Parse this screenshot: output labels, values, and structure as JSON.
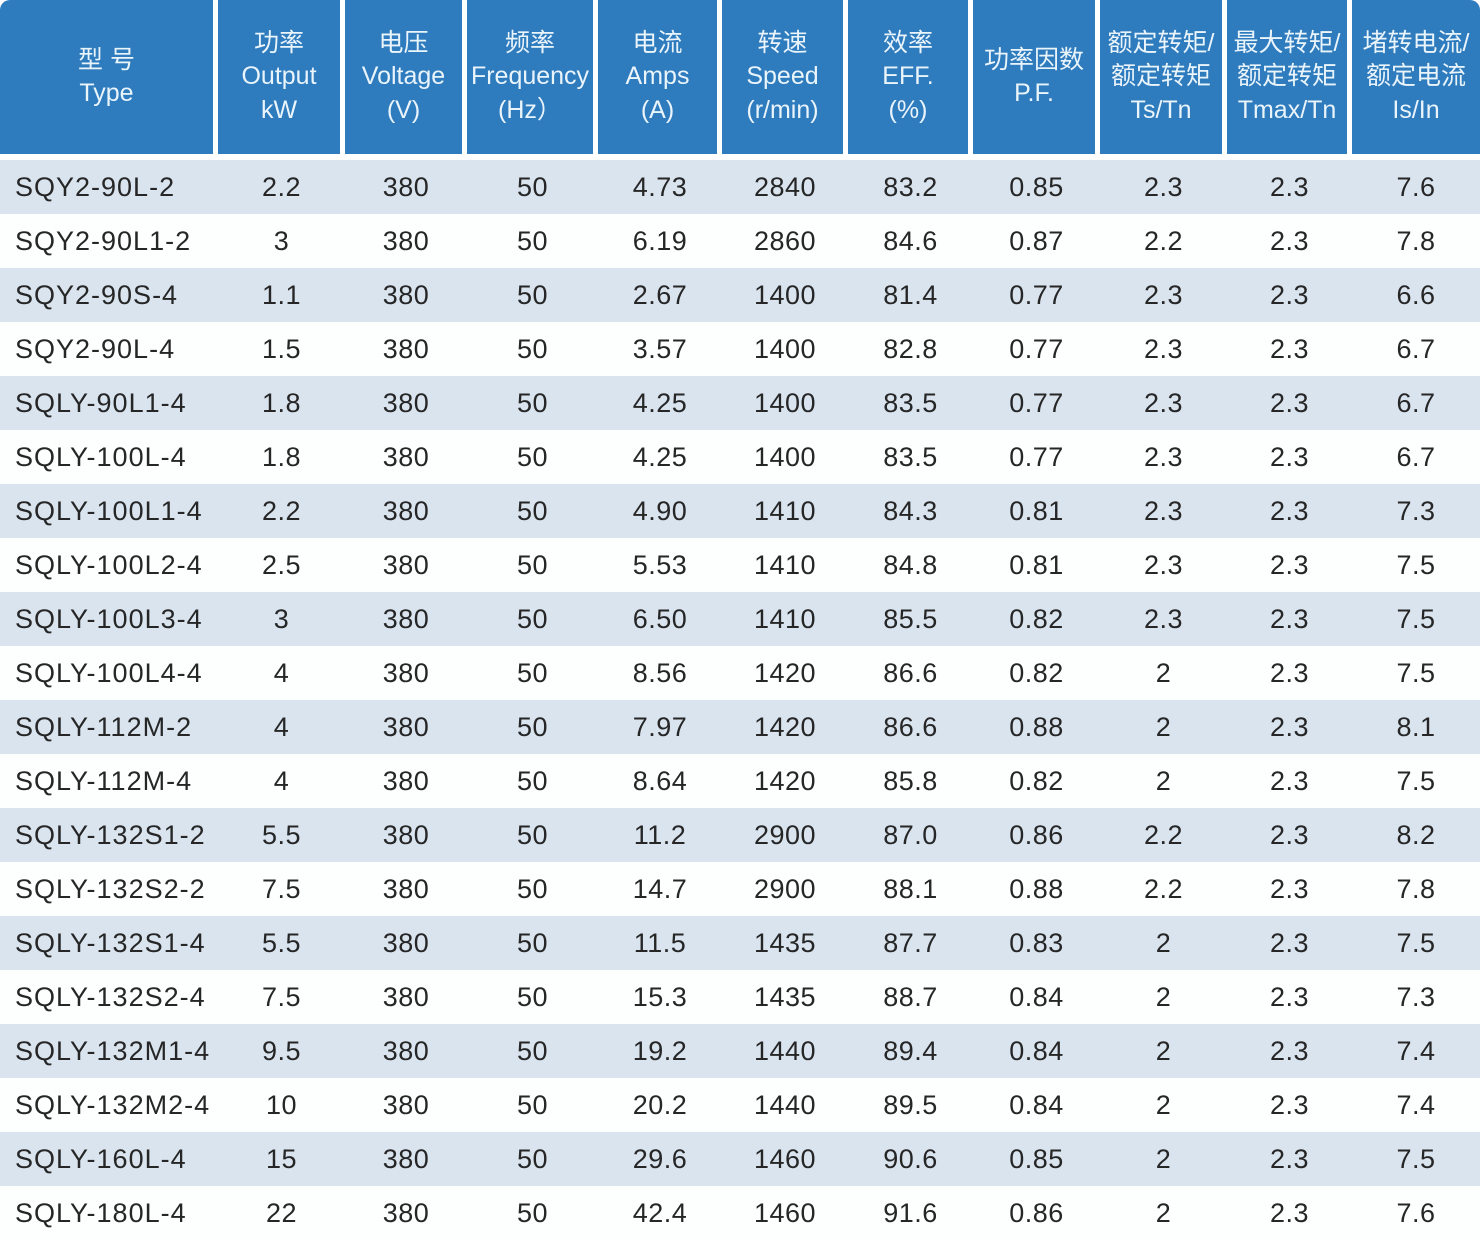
{
  "colors": {
    "header_bg": "#2e7bbd",
    "header_text": "#eaf4fb",
    "row_alt_bg": "#d9e4ef",
    "row_bg": "#fdfefe",
    "body_text": "#262626"
  },
  "table": {
    "columns": [
      {
        "lines": [
          "型 号",
          "Type"
        ]
      },
      {
        "lines": [
          "功率",
          "Output",
          "kW"
        ]
      },
      {
        "lines": [
          "电压",
          "Voltage",
          "(V)"
        ]
      },
      {
        "lines": [
          "频率",
          "Frequency",
          "(Hz）"
        ]
      },
      {
        "lines": [
          "电流",
          "Amps",
          "(A)"
        ]
      },
      {
        "lines": [
          "转速",
          "Speed",
          "(r/min)"
        ]
      },
      {
        "lines": [
          "效率",
          "EFF.",
          "(%)"
        ]
      },
      {
        "lines": [
          "功率因数",
          "P.F."
        ]
      },
      {
        "lines": [
          "额定转矩/",
          "额定转矩",
          "Ts/Tn"
        ]
      },
      {
        "lines": [
          "最大转矩/",
          "额定转矩",
          "Tmax/Tn"
        ]
      },
      {
        "lines": [
          "堵转电流/",
          "额定电流",
          "Is/In"
        ]
      }
    ],
    "rows": [
      {
        "type": "SQY2-90L-2",
        "values": [
          "2.2",
          "380",
          "50",
          "4.73",
          "2840",
          "83.2",
          "0.85",
          "2.3",
          "2.3",
          "7.6"
        ]
      },
      {
        "type": "SQY2-90L1-2",
        "values": [
          "3",
          "380",
          "50",
          "6.19",
          "2860",
          "84.6",
          "0.87",
          "2.2",
          "2.3",
          "7.8"
        ]
      },
      {
        "type": "SQY2-90S-4",
        "values": [
          "1.1",
          "380",
          "50",
          "2.67",
          "1400",
          "81.4",
          "0.77",
          "2.3",
          "2.3",
          "6.6"
        ]
      },
      {
        "type": "SQY2-90L-4",
        "values": [
          "1.5",
          "380",
          "50",
          "3.57",
          "1400",
          "82.8",
          "0.77",
          "2.3",
          "2.3",
          "6.7"
        ]
      },
      {
        "type": "SQLY-90L1-4",
        "values": [
          "1.8",
          "380",
          "50",
          "4.25",
          "1400",
          "83.5",
          "0.77",
          "2.3",
          "2.3",
          "6.7"
        ]
      },
      {
        "type": "SQLY-100L-4",
        "values": [
          "1.8",
          "380",
          "50",
          "4.25",
          "1400",
          "83.5",
          "0.77",
          "2.3",
          "2.3",
          "6.7"
        ]
      },
      {
        "type": "SQLY-100L1-4",
        "values": [
          "2.2",
          "380",
          "50",
          "4.90",
          "1410",
          "84.3",
          "0.81",
          "2.3",
          "2.3",
          "7.3"
        ]
      },
      {
        "type": "SQLY-100L2-4",
        "values": [
          "2.5",
          "380",
          "50",
          "5.53",
          "1410",
          "84.8",
          "0.81",
          "2.3",
          "2.3",
          "7.5"
        ]
      },
      {
        "type": "SQLY-100L3-4",
        "values": [
          "3",
          "380",
          "50",
          "6.50",
          "1410",
          "85.5",
          "0.82",
          "2.3",
          "2.3",
          "7.5"
        ]
      },
      {
        "type": "SQLY-100L4-4",
        "values": [
          "4",
          "380",
          "50",
          "8.56",
          "1420",
          "86.6",
          "0.82",
          "2",
          "2.3",
          "7.5"
        ]
      },
      {
        "type": "SQLY-112M-2",
        "values": [
          "4",
          "380",
          "50",
          "7.97",
          "1420",
          "86.6",
          "0.88",
          "2",
          "2.3",
          "8.1"
        ]
      },
      {
        "type": "SQLY-112M-4",
        "values": [
          "4",
          "380",
          "50",
          "8.64",
          "1420",
          "85.8",
          "0.82",
          "2",
          "2.3",
          "7.5"
        ]
      },
      {
        "type": "SQLY-132S1-2",
        "values": [
          "5.5",
          "380",
          "50",
          "11.2",
          "2900",
          "87.0",
          "0.86",
          "2.2",
          "2.3",
          "8.2"
        ]
      },
      {
        "type": "SQLY-132S2-2",
        "values": [
          "7.5",
          "380",
          "50",
          "14.7",
          "2900",
          "88.1",
          "0.88",
          "2.2",
          "2.3",
          "7.8"
        ]
      },
      {
        "type": "SQLY-132S1-4",
        "values": [
          "5.5",
          "380",
          "50",
          "11.5",
          "1435",
          "87.7",
          "0.83",
          "2",
          "2.3",
          "7.5"
        ]
      },
      {
        "type": "SQLY-132S2-4",
        "values": [
          "7.5",
          "380",
          "50",
          "15.3",
          "1435",
          "88.7",
          "0.84",
          "2",
          "2.3",
          "7.3"
        ]
      },
      {
        "type": "SQLY-132M1-4",
        "values": [
          "9.5",
          "380",
          "50",
          "19.2",
          "1440",
          "89.4",
          "0.84",
          "2",
          "2.3",
          "7.4"
        ]
      },
      {
        "type": "SQLY-132M2-4",
        "values": [
          "10",
          "380",
          "50",
          "20.2",
          "1440",
          "89.5",
          "0.84",
          "2",
          "2.3",
          "7.4"
        ]
      },
      {
        "type": "SQLY-160L-4",
        "values": [
          "15",
          "380",
          "50",
          "29.6",
          "1460",
          "90.6",
          "0.85",
          "2",
          "2.3",
          "7.5"
        ]
      },
      {
        "type": "SQLY-180L-4",
        "values": [
          "22",
          "380",
          "50",
          "42.4",
          "1460",
          "91.6",
          "0.86",
          "2",
          "2.3",
          "7.6"
        ]
      }
    ]
  }
}
